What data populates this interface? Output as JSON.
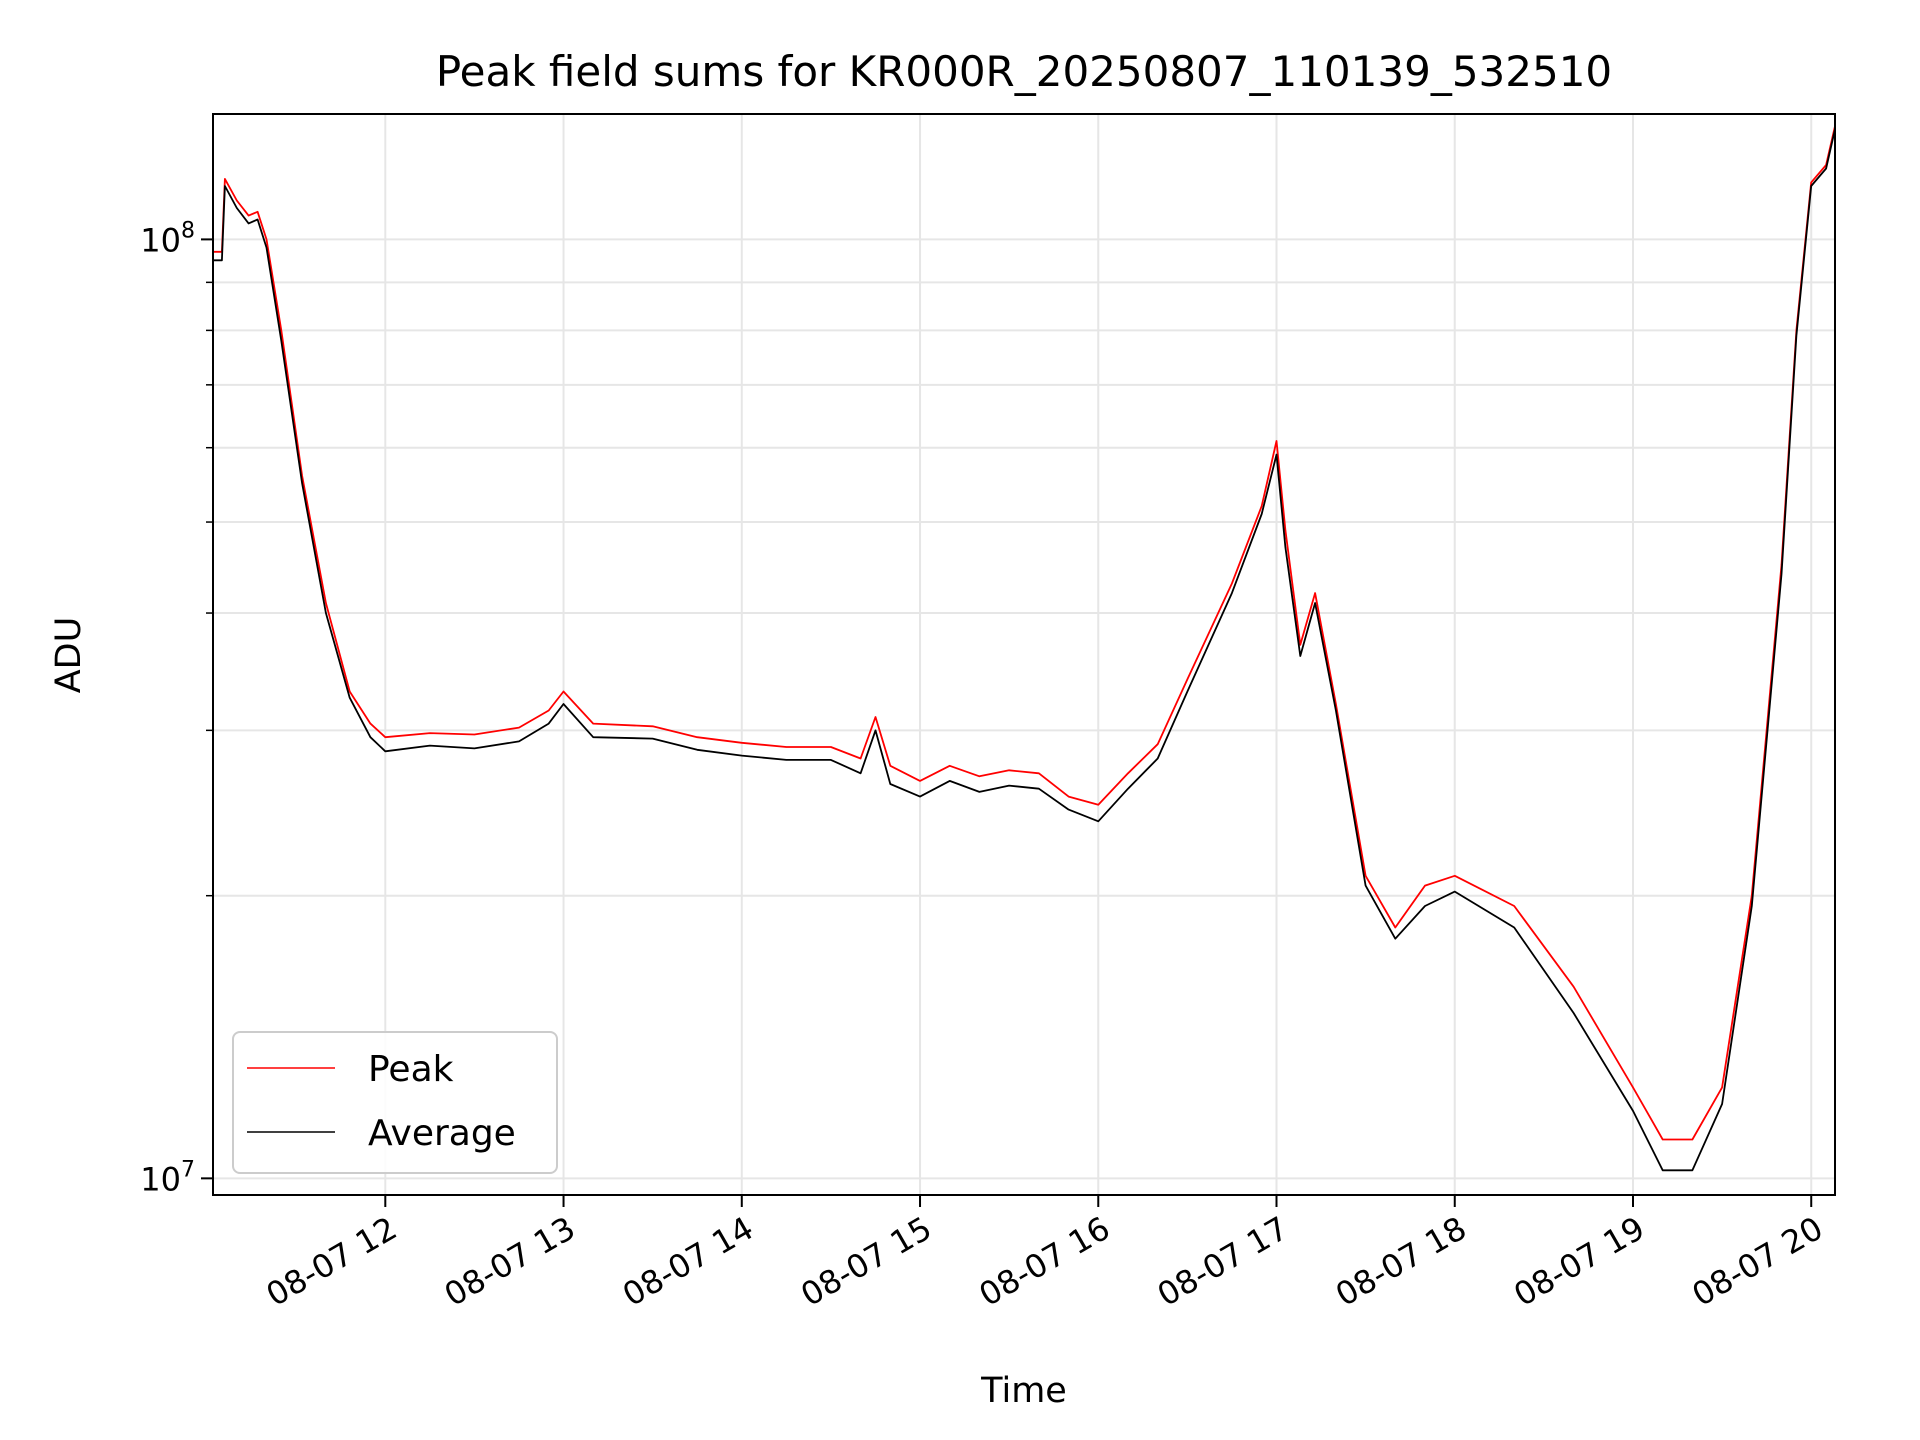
{
  "chart_data": {
    "type": "line",
    "title": "Peak field sums for KR000R_20250807_110139_532510",
    "xlabel": "Time",
    "ylabel": "ADU",
    "yscale": "log",
    "ylim": [
      9600000,
      136000000
    ],
    "xlim": [
      "2025-08-07 11:02",
      "2025-08-07 20:08"
    ],
    "x_ticks": [
      "08-07 12",
      "08-07 13",
      "08-07 14",
      "08-07 15",
      "08-07 16",
      "08-07 17",
      "08-07 18",
      "08-07 19",
      "08-07 20"
    ],
    "y_ticks": [
      {
        "value": 10000000,
        "base": "10",
        "exp": "7"
      },
      {
        "value": 100000000,
        "base": "10",
        "exp": "8"
      }
    ],
    "grid": true,
    "legend": "lower-left",
    "x": [
      "2025-08-07 11:02",
      "2025-08-07 11:05",
      "2025-08-07 11:06",
      "2025-08-07 11:10",
      "2025-08-07 11:14",
      "2025-08-07 11:17",
      "2025-08-07 11:20",
      "2025-08-07 11:25",
      "2025-08-07 11:32",
      "2025-08-07 11:40",
      "2025-08-07 11:48",
      "2025-08-07 11:55",
      "2025-08-07 12:00",
      "2025-08-07 12:15",
      "2025-08-07 12:30",
      "2025-08-07 12:45",
      "2025-08-07 12:55",
      "2025-08-07 13:00",
      "2025-08-07 13:10",
      "2025-08-07 13:30",
      "2025-08-07 13:45",
      "2025-08-07 14:00",
      "2025-08-07 14:15",
      "2025-08-07 14:30",
      "2025-08-07 14:40",
      "2025-08-07 14:45",
      "2025-08-07 14:50",
      "2025-08-07 15:00",
      "2025-08-07 15:10",
      "2025-08-07 15:20",
      "2025-08-07 15:30",
      "2025-08-07 15:40",
      "2025-08-07 15:50",
      "2025-08-07 16:00",
      "2025-08-07 16:10",
      "2025-08-07 16:20",
      "2025-08-07 16:30",
      "2025-08-07 16:45",
      "2025-08-07 16:55",
      "2025-08-07 17:00",
      "2025-08-07 17:03",
      "2025-08-07 17:08",
      "2025-08-07 17:13",
      "2025-08-07 17:20",
      "2025-08-07 17:30",
      "2025-08-07 17:40",
      "2025-08-07 17:50",
      "2025-08-07 18:00",
      "2025-08-07 18:20",
      "2025-08-07 18:40",
      "2025-08-07 19:00",
      "2025-08-07 19:10",
      "2025-08-07 19:20",
      "2025-08-07 19:30",
      "2025-08-07 19:40",
      "2025-08-07 19:50",
      "2025-08-07 19:55",
      "2025-08-07 20:00",
      "2025-08-07 20:05",
      "2025-08-07 20:08"
    ],
    "series": [
      {
        "name": "Peak",
        "color": "#ff0000",
        "values": [
          97000000,
          97000000,
          116000000,
          110000000,
          106000000,
          107000000,
          100000000,
          80000000,
          56000000,
          41000000,
          33000000,
          30500000,
          29500000,
          29800000,
          29700000,
          30200000,
          31500000,
          33000000,
          30500000,
          30300000,
          29500000,
          29100000,
          28800000,
          28800000,
          28000000,
          31000000,
          27500000,
          26500000,
          27500000,
          26800000,
          27200000,
          27000000,
          25500000,
          25000000,
          27000000,
          29000000,
          34000000,
          43000000,
          52000000,
          61000000,
          49000000,
          37000000,
          42000000,
          32000000,
          21000000,
          18500000,
          20500000,
          21000000,
          19500000,
          16000000,
          12500000,
          11000000,
          11000000,
          12500000,
          20000000,
          45000000,
          80000000,
          115000000,
          120000000,
          132000000
        ]
      },
      {
        "name": "Average",
        "color": "#000000",
        "values": [
          95000000,
          95000000,
          114000000,
          108000000,
          104000000,
          105000000,
          98000000,
          78000000,
          55000000,
          40000000,
          32500000,
          29500000,
          28500000,
          28900000,
          28700000,
          29200000,
          30500000,
          32000000,
          29500000,
          29400000,
          28600000,
          28200000,
          27900000,
          27900000,
          27000000,
          30000000,
          26300000,
          25500000,
          26500000,
          25800000,
          26200000,
          26000000,
          24700000,
          24000000,
          26000000,
          28000000,
          33000000,
          42000000,
          51000000,
          59000000,
          47000000,
          36000000,
          41000000,
          31500000,
          20500000,
          18000000,
          19500000,
          20200000,
          18500000,
          15000000,
          11800000,
          10200000,
          10200000,
          12000000,
          19500000,
          44000000,
          79000000,
          114000000,
          119000000,
          131000000
        ]
      }
    ]
  }
}
